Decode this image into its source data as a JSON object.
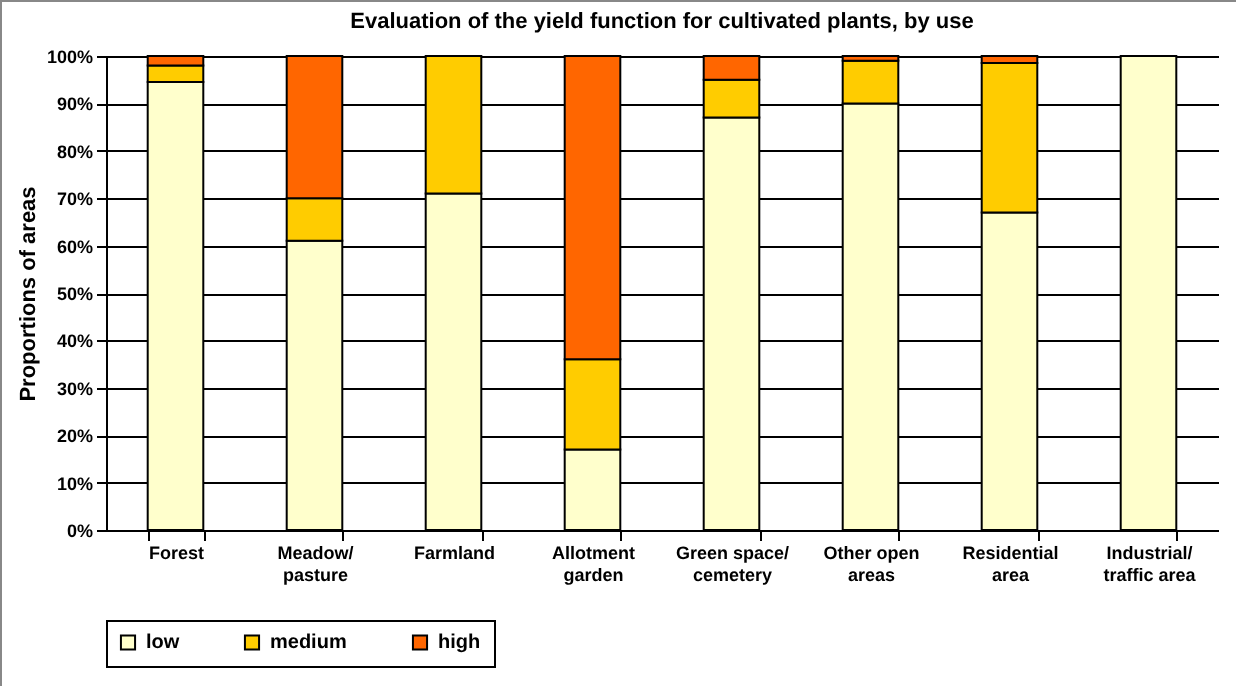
{
  "chart_data": {
    "type": "bar",
    "title": "Evaluation  of the yield function for cultivated plants, by use",
    "ylabel": "Proportions of areas",
    "categories": [
      "Forest",
      "Meadow/\npasture",
      "Farmland",
      "Allotment\ngarden",
      "Green space/\ncemetery",
      "Other open\nareas",
      "Residential\narea",
      "Industrial/\ntraffic area"
    ],
    "stacked": true,
    "series": [
      {
        "name": "low",
        "color": "#ffffcc",
        "values": [
          94.5,
          61,
          71,
          17,
          87,
          90,
          67,
          100
        ]
      },
      {
        "name": "medium",
        "color": "#ffcc00",
        "values": [
          3.5,
          9,
          29,
          19,
          8,
          9,
          31.5,
          0
        ]
      },
      {
        "name": "high",
        "color": "#ff6600",
        "values": [
          2,
          30,
          0,
          64,
          5,
          1,
          1.5,
          0
        ]
      }
    ],
    "ylim": [
      0,
      100
    ],
    "yticks": [
      {
        "value": 0,
        "label": "0%"
      },
      {
        "value": 10,
        "label": "10%"
      },
      {
        "value": 20,
        "label": "20%"
      },
      {
        "value": 30,
        "label": "30%"
      },
      {
        "value": 40,
        "label": "40%"
      },
      {
        "value": 50,
        "label": "50%"
      },
      {
        "value": 60,
        "label": "60%"
      },
      {
        "value": 70,
        "label": "70%"
      },
      {
        "value": 80,
        "label": "80%"
      },
      {
        "value": 90,
        "label": "90%"
      },
      {
        "value": 100,
        "label": "100%"
      }
    ],
    "grid": "y",
    "legend": "bottom"
  }
}
